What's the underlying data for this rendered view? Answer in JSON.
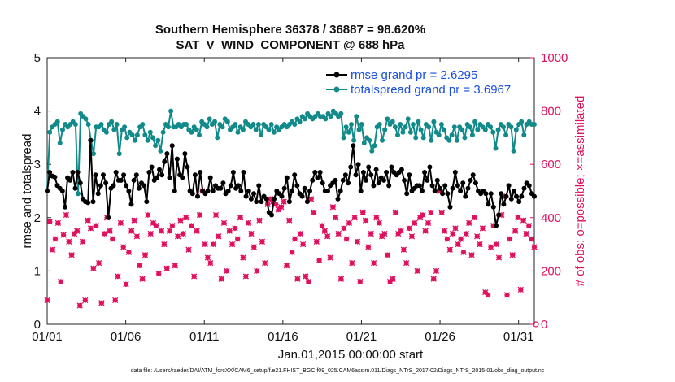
{
  "chart_data": {
    "type": "line",
    "title": "Southern Hemisphere 36378 / 36887 = 98.620%",
    "subtitle": "SAT_V_WIND_COMPONENT @ 688 hPa",
    "xlabel": "Jan.01,2015 00:00:00 start",
    "ylabel_left": "rmse and totalspread",
    "ylabel_right": "# of obs: o=possible; ×=assimilated",
    "x_ticks": [
      "01/01",
      "01/06",
      "01/11",
      "01/16",
      "01/21",
      "01/26",
      "01/31"
    ],
    "x_tick_days": [
      1,
      6,
      11,
      16,
      21,
      26,
      31
    ],
    "xlim": [
      1,
      32
    ],
    "ylim_left": [
      0,
      5
    ],
    "y_ticks_left": [
      "0",
      "1",
      "2",
      "3",
      "4",
      "5"
    ],
    "ylim_right": [
      0,
      1000
    ],
    "y_ticks_right": [
      "0",
      "200",
      "400",
      "600",
      "800",
      "1000"
    ],
    "colors": {
      "rmse": "#000000",
      "spread": "#138a8a",
      "obs": "#e0105e",
      "legend_text": "#1a4fe0"
    },
    "series": [
      {
        "name": "rmse grand pr = 2.6295",
        "axis": "left",
        "values": [
          2.5,
          2.85,
          2.78,
          2.76,
          2.6,
          2.55,
          2.5,
          2.2,
          2.75,
          2.7,
          2.85,
          2.55,
          2.85,
          2.65,
          2.35,
          2.3,
          2.28,
          3.45,
          2.3,
          2.8,
          2.45,
          2.6,
          2.8,
          2.65,
          2.0,
          2.55,
          2.6,
          2.85,
          2.7,
          2.7,
          2.8,
          2.6,
          2.5,
          2.25,
          2.7,
          2.8,
          2.55,
          2.65,
          2.6,
          2.3,
          2.85,
          2.95,
          2.7,
          2.75,
          2.9,
          2.8,
          3.05,
          3.2,
          2.75,
          3.35,
          2.5,
          3.1,
          2.8,
          2.75,
          3.2,
          2.95,
          2.5,
          2.45,
          2.8,
          2.4,
          2.85,
          2.5,
          2.45,
          2.5,
          2.75,
          2.5,
          2.6,
          2.55,
          2.55,
          2.65,
          2.45,
          2.5,
          2.6,
          2.85,
          2.55,
          2.6,
          2.5,
          2.85,
          2.4,
          2.5,
          2.35,
          2.45,
          2.3,
          2.6,
          2.3,
          2.4,
          2.35,
          2.1,
          2.05,
          2.35,
          2.5,
          2.45,
          2.4,
          2.55,
          2.75,
          2.3,
          2.5,
          2.8,
          2.6,
          2.45,
          2.4,
          2.55,
          2.3,
          2.5,
          2.7,
          2.85,
          2.75,
          2.85,
          2.65,
          2.5,
          2.5,
          2.6,
          2.65,
          2.7,
          2.35,
          2.5,
          2.7,
          2.8,
          2.65,
          2.95,
          3.35,
          2.8,
          3.0,
          2.5,
          2.85,
          2.7,
          2.95,
          2.8,
          2.6,
          2.9,
          2.65,
          2.75,
          2.7,
          2.85,
          2.6,
          2.95,
          2.85,
          2.8,
          2.85,
          2.9,
          2.7,
          2.45,
          2.8,
          2.5,
          2.55,
          2.6,
          2.6,
          2.5,
          2.85,
          2.7,
          2.95,
          2.6,
          2.5,
          2.7,
          2.55,
          2.45,
          2.6,
          2.45,
          2.2,
          2.55,
          2.85,
          2.6,
          2.5,
          2.65,
          2.4,
          2.55,
          2.7,
          2.8,
          2.65,
          2.5,
          2.45,
          2.5,
          2.45,
          2.25,
          2.45,
          2.2,
          1.85,
          2.05,
          2.45,
          2.25,
          2.4,
          2.6,
          2.35,
          2.5,
          2.4,
          2.3,
          2.4,
          2.55,
          2.65,
          2.6,
          2.45,
          2.4
        ]
      },
      {
        "name": "totalspread grand pr = 3.6967",
        "axis": "left",
        "values": [
          2.5,
          3.6,
          3.7,
          3.75,
          3.8,
          3.4,
          3.65,
          3.75,
          3.7,
          3.75,
          3.8,
          3.75,
          2.45,
          3.95,
          3.9,
          3.85,
          3.75,
          3.45,
          3.2,
          3.7,
          3.7,
          3.75,
          3.65,
          3.6,
          3.75,
          3.8,
          3.65,
          3.75,
          3.2,
          3.65,
          3.7,
          3.5,
          3.6,
          3.55,
          3.45,
          3.55,
          3.7,
          3.75,
          3.55,
          3.45,
          3.6,
          3.5,
          3.35,
          3.45,
          3.25,
          3.6,
          3.75,
          3.7,
          4.0,
          3.7,
          3.7,
          3.75,
          3.7,
          3.75,
          3.75,
          3.65,
          3.6,
          3.7,
          3.65,
          3.55,
          3.8,
          3.75,
          3.7,
          3.85,
          3.75,
          3.8,
          3.5,
          3.75,
          3.7,
          3.85,
          3.8,
          3.65,
          3.7,
          3.75,
          3.6,
          3.7,
          3.65,
          3.8,
          3.75,
          3.7,
          3.75,
          3.65,
          3.75,
          3.55,
          3.75,
          3.7,
          3.65,
          3.75,
          3.6,
          3.7,
          3.65,
          3.7,
          3.75,
          3.7,
          3.75,
          3.8,
          3.75,
          3.85,
          3.8,
          3.9,
          3.85,
          3.95,
          3.9,
          3.85,
          3.9,
          3.95,
          3.9,
          3.9,
          3.85,
          3.95,
          3.9,
          4.0,
          3.95,
          3.9,
          3.95,
          3.5,
          3.7,
          3.6,
          3.75,
          3.45,
          3.9,
          3.65,
          3.75,
          3.4,
          3.5,
          3.45,
          3.25,
          3.35,
          3.7,
          3.75,
          3.45,
          3.65,
          3.85,
          3.75,
          3.8,
          3.7,
          3.55,
          3.75,
          3.6,
          3.7,
          3.85,
          3.6,
          3.75,
          3.5,
          3.8,
          3.65,
          3.5,
          3.75,
          3.7,
          3.45,
          3.8,
          3.6,
          3.55,
          3.75,
          3.65,
          3.5,
          3.45,
          3.55,
          3.7,
          3.45,
          3.7,
          3.65,
          3.5,
          3.75,
          3.7,
          3.55,
          3.8,
          3.65,
          3.75,
          3.7,
          3.65,
          3.75,
          3.7,
          3.6,
          3.3,
          3.65,
          3.75,
          3.7,
          3.55,
          3.75,
          3.7,
          3.25,
          3.65,
          3.75,
          3.8,
          3.55,
          3.75,
          3.8,
          3.75,
          3.75
        ]
      },
      {
        "name": "obs possible / assimilated",
        "axis": "right",
        "values": [
          90,
          385,
          280,
          320,
          380,
          160,
          335,
          410,
          310,
          260,
          340,
          350,
          70,
          310,
          90,
          390,
          360,
          210,
          370,
          230,
          80,
          340,
          400,
          350,
          320,
          90,
          180,
          380,
          290,
          150,
          270,
          350,
          390,
          330,
          220,
          170,
          260,
          410,
          340,
          380,
          370,
          190,
          350,
          300,
          210,
          350,
          370,
          220,
          330,
          390,
          340,
          400,
          280,
          370,
          180,
          350,
          410,
          500,
          300,
          250,
          230,
          300,
          410,
          330,
          170,
          380,
          200,
          350,
          300,
          360,
          320,
          400,
          250,
          180,
          380,
          340,
          290,
          200,
          390,
          310,
          230,
          450,
          470,
          460,
          450,
          430,
          440,
          460,
          220,
          390,
          270,
          320,
          170,
          340,
          300,
          180,
          160,
          470,
          420,
          310,
          240,
          370,
          350,
          330,
          250,
          440,
          400,
          340,
          170,
          360,
          320,
          380,
          230,
          400,
          310,
          160,
          420,
          390,
          290,
          340,
          230,
          400,
          380,
          330,
          340,
          260,
          160,
          170,
          420,
          340,
          350,
          280,
          230,
          360,
          330,
          380,
          200,
          400,
          410,
          350,
          380,
          420,
          170,
          200,
          500,
          420,
          350,
          320,
          280,
          340,
          360,
          300,
          320,
          270,
          340,
          380,
          260,
          400,
          330,
          300,
          360,
          120,
          110,
          290,
          370,
          300,
          250,
          410,
          480,
          110,
          320,
          260,
          350,
          400,
          130,
          390,
          340,
          370,
          320,
          290
        ]
      }
    ],
    "legend": [
      "rmse grand pr = 2.6295",
      "totalspread grand pr = 3.6967"
    ],
    "legend_position": "top-right",
    "grid": false
  },
  "footer": {
    "data_file": "data file: /Users/raeder/DAI/ATM_forcXX/CAM6_setup/f.e21.FHIST_BGC.f09_025.CAM6assim.011/Diags_NTrS_2017-02/Diags_NTrS_2015-01/obs_diag_output.nc"
  }
}
